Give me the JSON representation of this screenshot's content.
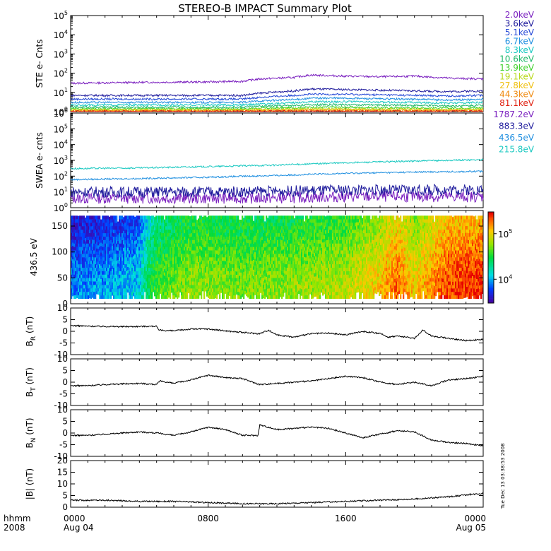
{
  "title": "STEREO-B IMPACT Summary Plot",
  "timestamp": "Tue Dec 13 03:38:53 2008",
  "time_axis": {
    "label": "hhmm",
    "year": "2008",
    "ticks": [
      {
        "hour": 0,
        "label": "0000",
        "date": "Aug 04"
      },
      {
        "hour": 8,
        "label": "0800",
        "date": ""
      },
      {
        "hour": 16,
        "label": "1600",
        "date": ""
      },
      {
        "hour": 24,
        "label": "0000",
        "date": "Aug 05"
      }
    ]
  },
  "chart_data": [
    {
      "id": "ste",
      "type": "line",
      "ylabel": "STE e- Cnts",
      "yscale": "log",
      "ylim": [
        1,
        100000
      ],
      "yticks": [
        {
          "v": 1,
          "e": "0"
        },
        {
          "v": 10,
          "e": "1"
        },
        {
          "v": 100,
          "e": "2"
        },
        {
          "v": 1000,
          "e": "3"
        },
        {
          "v": 10000,
          "e": "4"
        },
        {
          "v": 100000,
          "e": "5"
        }
      ],
      "x": [
        0,
        4,
        8,
        10,
        11,
        13,
        14,
        16,
        18,
        20,
        22,
        24
      ],
      "series": [
        {
          "name": "2.0keV",
          "color": "#7a1fbf",
          "values": [
            30,
            33,
            35,
            38,
            50,
            60,
            80,
            70,
            65,
            70,
            55,
            50
          ]
        },
        {
          "name": "3.6keV",
          "color": "#1e1a9c",
          "values": [
            7,
            7,
            7,
            7,
            9,
            12,
            15,
            14,
            13,
            12,
            11,
            12
          ]
        },
        {
          "name": "5.1keV",
          "color": "#2447d6",
          "values": [
            4.5,
            4.5,
            4.5,
            4.5,
            5.5,
            7,
            8,
            8,
            7.5,
            7,
            6.5,
            7
          ]
        },
        {
          "name": "6.7keV",
          "color": "#1f8fe0",
          "values": [
            3,
            3,
            3,
            3,
            3.6,
            4.2,
            5,
            5,
            4.6,
            4.4,
            4,
            4.4
          ]
        },
        {
          "name": "8.3keV",
          "color": "#18c8c0",
          "values": [
            2.2,
            2.2,
            2.2,
            2.2,
            2.5,
            2.9,
            3.3,
            3.3,
            3.1,
            3,
            2.8,
            3
          ]
        },
        {
          "name": "10.6keV",
          "color": "#1fb86a",
          "values": [
            1.7,
            1.7,
            1.7,
            1.7,
            1.9,
            2.1,
            2.3,
            2.3,
            2.2,
            2.1,
            2,
            2.1
          ]
        },
        {
          "name": "13.9keV",
          "color": "#3fd12a",
          "values": [
            1.4,
            1.4,
            1.4,
            1.4,
            1.5,
            1.6,
            1.7,
            1.7,
            1.6,
            1.6,
            1.5,
            1.6
          ]
        },
        {
          "name": "19.1keV",
          "color": "#b8d81a",
          "values": [
            1.25,
            1.25,
            1.25,
            1.25,
            1.3,
            1.35,
            1.4,
            1.4,
            1.35,
            1.35,
            1.3,
            1.35
          ]
        },
        {
          "name": "27.8keV",
          "color": "#f0c010",
          "values": [
            1.15,
            1.15,
            1.15,
            1.15,
            1.2,
            1.2,
            1.25,
            1.25,
            1.2,
            1.2,
            1.2,
            1.2
          ]
        },
        {
          "name": "44.3keV",
          "color": "#f08a10",
          "values": [
            1.08,
            1.08,
            1.08,
            1.08,
            1.1,
            1.1,
            1.12,
            1.12,
            1.1,
            1.1,
            1.1,
            1.1
          ]
        },
        {
          "name": "81.1keV",
          "color": "#e02010",
          "values": [
            1.03,
            1.03,
            1.03,
            1.03,
            1.04,
            1.04,
            1.05,
            1.05,
            1.04,
            1.04,
            1.04,
            1.04
          ]
        }
      ]
    },
    {
      "id": "swea",
      "type": "line",
      "ylabel": "SWEA e- cnts",
      "yscale": "log",
      "ylim": [
        1,
        1000000
      ],
      "yticks": [
        {
          "v": 1,
          "e": "0"
        },
        {
          "v": 10,
          "e": "1"
        },
        {
          "v": 100,
          "e": "2"
        },
        {
          "v": 1000,
          "e": "3"
        },
        {
          "v": 10000,
          "e": "4"
        },
        {
          "v": 100000,
          "e": "5"
        },
        {
          "v": 1000000,
          "e": "6"
        }
      ],
      "x": [
        0,
        4,
        8,
        12,
        16,
        20,
        24
      ],
      "series": [
        {
          "name": "1787.2eV",
          "color": "#7a1fbf",
          "values": [
            4,
            4,
            4,
            4,
            5,
            5,
            5
          ]
        },
        {
          "name": "883.3eV",
          "color": "#1e1a9c",
          "values": [
            10,
            10,
            10,
            11,
            13,
            13,
            14
          ]
        },
        {
          "name": "436.5eV",
          "color": "#1f8fe0",
          "values": [
            60,
            70,
            85,
            110,
            150,
            180,
            200
          ]
        },
        {
          "name": "215.8eV",
          "color": "#18c8c0",
          "values": [
            300,
            330,
            400,
            500,
            700,
            900,
            1100
          ]
        }
      ]
    },
    {
      "id": "pad",
      "type": "heatmap",
      "ylabel": "436.5 eV",
      "ylim": [
        0,
        180
      ],
      "yticks": [
        0,
        50,
        100,
        150
      ],
      "colorbar": {
        "scale": "log",
        "range": [
          3000,
          300000
        ],
        "ticks": [
          {
            "v": 10000,
            "e": "4"
          },
          {
            "v": 100000,
            "e": "5"
          }
        ]
      },
      "x": [
        0,
        2,
        4,
        5,
        7,
        10,
        13,
        16,
        18,
        19,
        20,
        21,
        22,
        23,
        24
      ],
      "levels": [
        6000,
        7000,
        9000,
        30000,
        45000,
        40000,
        45000,
        55000,
        90000,
        150000,
        80000,
        120000,
        180000,
        190000,
        200000
      ],
      "pitch_range": [
        10,
        170
      ]
    },
    {
      "id": "br",
      "type": "line",
      "ylabel": "B",
      "ylabel_sub": "R",
      "ylabel_unit": "(nT)",
      "ylim": [
        -10,
        10
      ],
      "yticks": [
        -10,
        -5,
        0,
        5,
        10
      ],
      "x": [
        0,
        1,
        3,
        5,
        5.1,
        6,
        7,
        8,
        9,
        10,
        11,
        11.5,
        12,
        13,
        14,
        15,
        16,
        17,
        18,
        18.5,
        19,
        20,
        20.5,
        21,
        22,
        23,
        24
      ],
      "values": [
        2.5,
        2.2,
        2.0,
        2.2,
        0.5,
        0.2,
        1.0,
        1.0,
        0.2,
        -0.5,
        -1.0,
        0.5,
        -1.5,
        -2.5,
        -1.0,
        -0.8,
        -1.5,
        0,
        -1.0,
        -2.5,
        -2.0,
        -3.0,
        0.5,
        -2.0,
        -3.0,
        -4.0,
        -3.5
      ]
    },
    {
      "id": "bt",
      "type": "line",
      "ylabel": "B",
      "ylabel_sub": "T",
      "ylabel_unit": "(nT)",
      "ylim": [
        -10,
        10
      ],
      "yticks": [
        -10,
        -5,
        0,
        5,
        10
      ],
      "x": [
        0,
        1,
        2,
        4,
        5,
        5.2,
        6,
        7,
        8,
        9,
        10,
        11,
        12,
        13,
        14,
        15,
        16,
        17,
        18,
        19,
        20,
        21,
        22,
        23,
        24
      ],
      "values": [
        -1.5,
        -1.5,
        -1.0,
        -0.5,
        -1.0,
        0.5,
        -0.5,
        1.0,
        3.0,
        2.0,
        1.5,
        -1.0,
        -0.5,
        0,
        0.5,
        1.5,
        2.5,
        2.0,
        0,
        -1.0,
        0,
        -1.5,
        1.0,
        1.5,
        2.5
      ]
    },
    {
      "id": "bn",
      "type": "line",
      "ylabel": "B",
      "ylabel_sub": "N",
      "ylabel_unit": "(nT)",
      "ylim": [
        -10,
        10
      ],
      "yticks": [
        -10,
        -5,
        0,
        5,
        10
      ],
      "x": [
        0,
        1,
        2,
        4,
        5,
        6,
        7,
        8,
        9,
        10,
        10.9,
        11,
        12,
        13,
        14,
        15,
        16,
        17,
        18,
        19,
        20,
        21,
        22,
        23,
        24
      ],
      "values": [
        -1.0,
        -1.0,
        -0.5,
        0.5,
        0,
        -1.0,
        0.5,
        2.5,
        1.5,
        -1.0,
        -1.0,
        3.5,
        1.5,
        2.0,
        2.5,
        2.0,
        0,
        -2.0,
        -0.5,
        1.0,
        0.5,
        -3.0,
        -4.0,
        -4.5,
        -5.5
      ]
    },
    {
      "id": "bmag",
      "type": "line",
      "ylabel": "|B| (nT)",
      "ylim": [
        0,
        20
      ],
      "yticks": [
        0,
        5,
        10,
        15,
        20
      ],
      "x": [
        0,
        2,
        4,
        6,
        8,
        10,
        12,
        14,
        16,
        18,
        20,
        22,
        24
      ],
      "values": [
        3,
        3,
        2.5,
        2.5,
        2,
        1.5,
        1.5,
        2,
        2.5,
        3,
        3.5,
        4.5,
        6
      ]
    }
  ]
}
